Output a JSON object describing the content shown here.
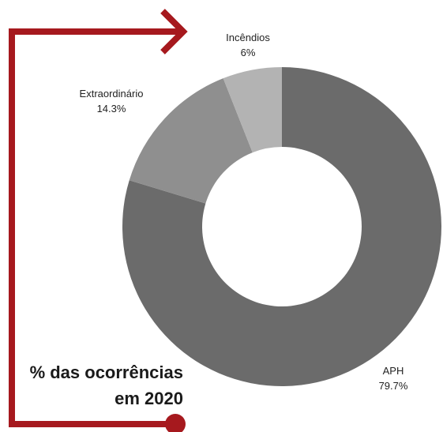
{
  "chart_data": {
    "type": "pie",
    "donut": true,
    "slices": [
      {
        "label": "APH",
        "value_label": "79.7%",
        "value": 79.7,
        "color": "#6b6b6b"
      },
      {
        "label": "Extraordinário",
        "value_label": "14.3%",
        "value": 14.3,
        "color": "#8f8f8f"
      },
      {
        "label": "Incêndios",
        "value_label": "6%",
        "value": 6,
        "color": "#b3b3b3"
      }
    ],
    "caption_line1": "% das ocorrências",
    "caption_line2": "em 2020"
  },
  "colors": {
    "accent": "#a6191e",
    "background": "#ffffff"
  }
}
